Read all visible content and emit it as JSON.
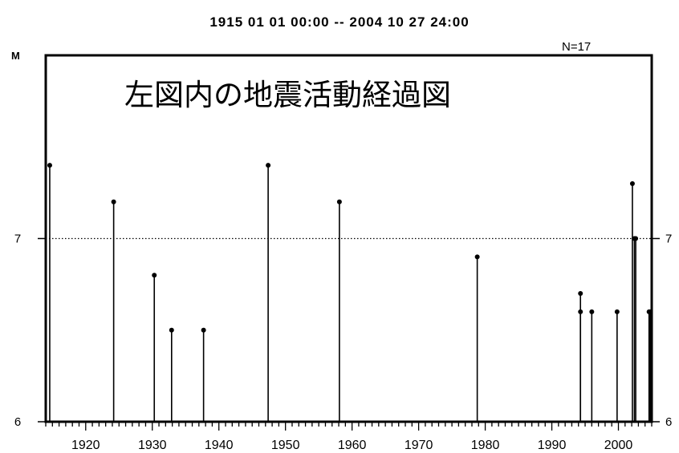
{
  "header": {
    "date_range": "1915 01 01 00:00 -- 2004 10 27 24:00",
    "count_label": "N=17",
    "y_label": "M",
    "caption": "左図内の地震活動経過図"
  },
  "chart_data": {
    "type": "stem",
    "title": "1915 01 01 00:00 -- 2004 10 27 24:00",
    "ylabel": "M",
    "xlim": [
      1914,
      2005
    ],
    "ylim": [
      6,
      8
    ],
    "reference_line": 7,
    "y_ticks": [
      6,
      7
    ],
    "x_ticks": [
      1920,
      1930,
      1940,
      1950,
      1960,
      1970,
      1980,
      1990,
      2000
    ],
    "points": [
      {
        "x": 1914.6,
        "y": 7.4
      },
      {
        "x": 1924.2,
        "y": 7.2
      },
      {
        "x": 1930.3,
        "y": 6.8
      },
      {
        "x": 1932.9,
        "y": 6.5
      },
      {
        "x": 1937.7,
        "y": 6.5
      },
      {
        "x": 1947.4,
        "y": 7.4
      },
      {
        "x": 1958.1,
        "y": 7.2
      },
      {
        "x": 1978.8,
        "y": 6.9
      },
      {
        "x": 1994.3,
        "y": 6.7
      },
      {
        "x": 1994.3,
        "y": 6.6
      },
      {
        "x": 1996.0,
        "y": 6.6
      },
      {
        "x": 1999.8,
        "y": 6.6
      },
      {
        "x": 2002.1,
        "y": 7.3
      },
      {
        "x": 2002.4,
        "y": 7.0
      },
      {
        "x": 2002.6,
        "y": 7.0
      },
      {
        "x": 2004.8,
        "y": 6.6
      },
      {
        "x": 2004.6,
        "y": 6.6
      }
    ]
  }
}
